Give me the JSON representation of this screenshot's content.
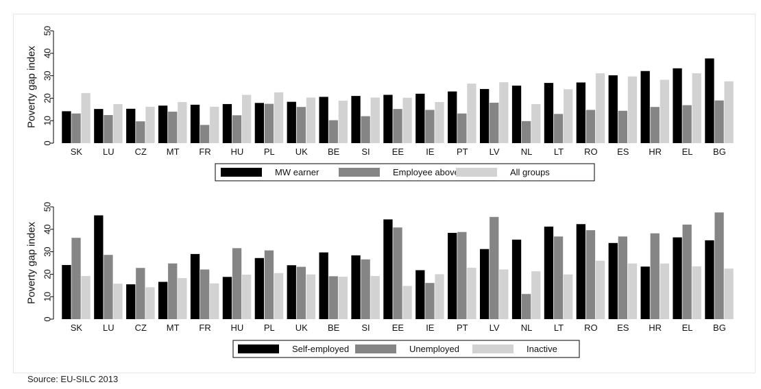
{
  "source": "Source: EU-SILC 2013",
  "colors": {
    "dark": "#000000",
    "mid": "#858585",
    "light": "#d2d2d2"
  },
  "chart_data": [
    {
      "type": "bar",
      "ylabel": "Poverty gap index",
      "ylim": [
        0,
        50
      ],
      "yticks": [
        0,
        10,
        20,
        30,
        40,
        50
      ],
      "categories": [
        "SK",
        "LU",
        "CZ",
        "MT",
        "FR",
        "HU",
        "PL",
        "UK",
        "BE",
        "SI",
        "EE",
        "IE",
        "PT",
        "LV",
        "NL",
        "LT",
        "RO",
        "ES",
        "HR",
        "EL",
        "BG"
      ],
      "series": [
        {
          "name": "MW earner",
          "color": "#000000",
          "values": [
            14.2,
            15.2,
            15.3,
            16.7,
            17.1,
            17.4,
            17.9,
            18.4,
            20.6,
            21.0,
            21.5,
            22.0,
            23.0,
            24.1,
            25.6,
            26.8,
            27.0,
            30.2,
            32.1,
            33.3,
            37.7
          ]
        },
        {
          "name": "Employee above MW",
          "color": "#858585",
          "values": [
            13.2,
            12.5,
            9.7,
            14.0,
            8.1,
            12.4,
            17.5,
            16.1,
            10.2,
            12.0,
            15.2,
            14.8,
            13.2,
            18.0,
            9.8,
            13.0,
            14.8,
            14.4,
            16.1,
            16.9,
            19.0
          ]
        },
        {
          "name": "All groups",
          "color": "#d2d2d2",
          "values": [
            22.3,
            17.4,
            16.2,
            18.3,
            16.2,
            21.5,
            22.6,
            20.3,
            18.9,
            20.3,
            20.2,
            18.3,
            26.5,
            27.1,
            17.4,
            24.0,
            31.1,
            29.7,
            28.2,
            31.1,
            27.5
          ]
        }
      ]
    },
    {
      "type": "bar",
      "ylabel": "Poverty gap index",
      "ylim": [
        0,
        50
      ],
      "yticks": [
        0,
        10,
        20,
        30,
        40,
        50
      ],
      "categories": [
        "SK",
        "LU",
        "CZ",
        "MT",
        "FR",
        "HU",
        "PL",
        "UK",
        "BE",
        "SI",
        "EE",
        "IE",
        "PT",
        "LV",
        "NL",
        "LT",
        "RO",
        "ES",
        "HR",
        "EL",
        "BG"
      ],
      "series": [
        {
          "name": "Self-employed",
          "color": "#000000",
          "values": [
            24.1,
            46.2,
            15.5,
            16.6,
            29.0,
            18.8,
            27.2,
            24.0,
            29.7,
            28.4,
            44.4,
            21.8,
            38.4,
            31.2,
            35.4,
            41.2,
            42.3,
            33.9,
            23.4,
            36.4,
            35.1
          ]
        },
        {
          "name": "Unemployed",
          "color": "#858585",
          "values": [
            36.2,
            28.6,
            22.8,
            24.8,
            22.1,
            31.6,
            30.6,
            23.3,
            19.1,
            26.6,
            40.8,
            16.1,
            38.8,
            45.5,
            11.2,
            36.8,
            39.6,
            36.8,
            38.2,
            42.1,
            47.5
          ]
        },
        {
          "name": "Inactive",
          "color": "#d2d2d2",
          "values": [
            19.2,
            15.8,
            14.2,
            18.3,
            15.9,
            19.8,
            20.5,
            19.9,
            18.9,
            19.2,
            14.8,
            20.0,
            22.9,
            22.1,
            21.3,
            19.9,
            26.0,
            24.8,
            24.8,
            23.5,
            22.5
          ]
        }
      ]
    }
  ]
}
